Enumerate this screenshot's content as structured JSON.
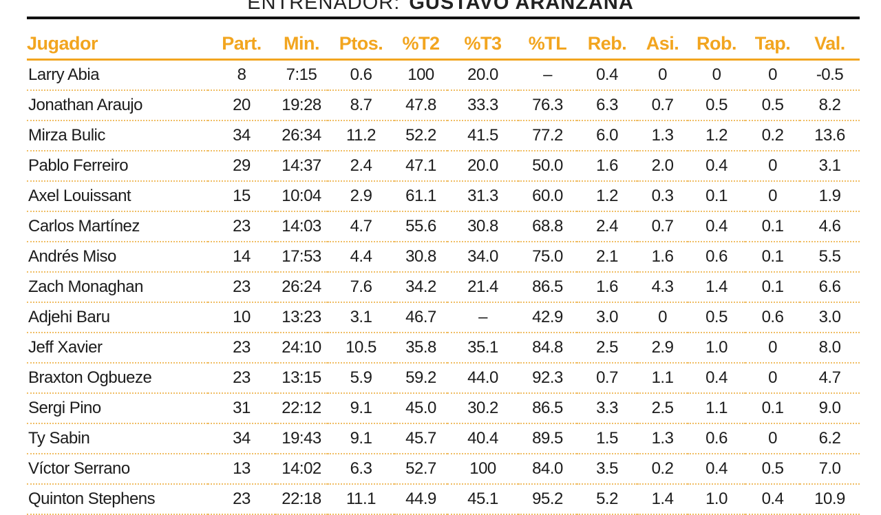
{
  "coach": {
    "label": "ENTRENADOR:",
    "name": "GUSTAVO ARANZANA"
  },
  "columns": [
    "Jugador",
    "Part.",
    "Min.",
    "Ptos.",
    "%T2",
    "%T3",
    "%TL",
    "Reb.",
    "Asi.",
    "Rob.",
    "Tap.",
    "Val."
  ],
  "rows": [
    [
      "Larry Abia",
      "8",
      "7:15",
      "0.6",
      "100",
      "20.0",
      "–",
      "0.4",
      "0",
      "0",
      "0",
      "-0.5"
    ],
    [
      "Jonathan Araujo",
      "20",
      "19:28",
      "8.7",
      "47.8",
      "33.3",
      "76.3",
      "6.3",
      "0.7",
      "0.5",
      "0.5",
      "8.2"
    ],
    [
      "Mirza Bulic",
      "34",
      "26:34",
      "11.2",
      "52.2",
      "41.5",
      "77.2",
      "6.0",
      "1.3",
      "1.2",
      "0.2",
      "13.6"
    ],
    [
      "Pablo Ferreiro",
      "29",
      "14:37",
      "2.4",
      "47.1",
      "20.0",
      "50.0",
      "1.6",
      "2.0",
      "0.4",
      "0",
      "3.1"
    ],
    [
      "Axel Louissant",
      "15",
      "10:04",
      "2.9",
      "61.1",
      "31.3",
      "60.0",
      "1.2",
      "0.3",
      "0.1",
      "0",
      "1.9"
    ],
    [
      "Carlos Martínez",
      "23",
      "14:03",
      "4.7",
      "55.6",
      "30.8",
      "68.8",
      "2.4",
      "0.7",
      "0.4",
      "0.1",
      "4.6"
    ],
    [
      "Andrés Miso",
      "14",
      "17:53",
      "4.4",
      "30.8",
      "34.0",
      "75.0",
      "2.1",
      "1.6",
      "0.6",
      "0.1",
      "5.5"
    ],
    [
      "Zach Monaghan",
      "23",
      "26:24",
      "7.6",
      "34.2",
      "21.4",
      "86.5",
      "1.6",
      "4.3",
      "1.4",
      "0.1",
      "6.6"
    ],
    [
      "Adjehi Baru",
      "10",
      "13:23",
      "3.1",
      "46.7",
      "–",
      "42.9",
      "3.0",
      "0",
      "0.5",
      "0.6",
      "3.0"
    ],
    [
      "Jeff Xavier",
      "23",
      "24:10",
      "10.5",
      "35.8",
      "35.1",
      "84.8",
      "2.5",
      "2.9",
      "1.0",
      "0",
      "8.0"
    ],
    [
      "Braxton Ogbueze",
      "23",
      "13:15",
      "5.9",
      "59.2",
      "44.0",
      "92.3",
      "0.7",
      "1.1",
      "0.4",
      "0",
      "4.7"
    ],
    [
      "Sergi Pino",
      "31",
      "22:12",
      "9.1",
      "45.0",
      "30.2",
      "86.5",
      "3.3",
      "2.5",
      "1.1",
      "0.1",
      "9.0"
    ],
    [
      "Ty Sabin",
      "34",
      "19:43",
      "9.1",
      "45.7",
      "40.4",
      "89.5",
      "1.5",
      "1.3",
      "0.6",
      "0",
      "6.2"
    ],
    [
      "Víctor Serrano",
      "13",
      "14:02",
      "6.3",
      "52.7",
      "100",
      "84.0",
      "3.5",
      "0.2",
      "0.4",
      "0.5",
      "7.0"
    ],
    [
      "Quinton Stephens",
      "23",
      "22:18",
      "11.1",
      "44.9",
      "45.1",
      "95.2",
      "5.2",
      "1.4",
      "1.0",
      "0.4",
      "10.9"
    ]
  ],
  "colors": {
    "accent": "#f2a51f",
    "text": "#1c1c1c",
    "rule": "#111111"
  }
}
